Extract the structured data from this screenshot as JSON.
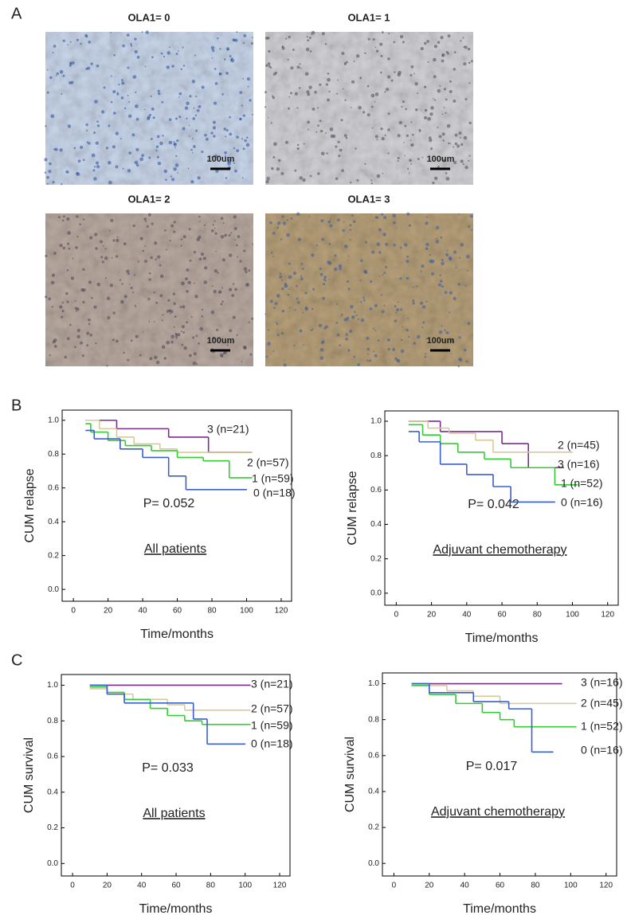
{
  "panels": [
    "A",
    "B",
    "C"
  ],
  "images": [
    {
      "title": "OLA1= 0",
      "scale": "100um"
    },
    {
      "title": "OLA1= 1",
      "scale": "100um"
    },
    {
      "title": "OLA1= 2",
      "scale": "100um"
    },
    {
      "title": "OLA1= 3",
      "scale": "100um"
    }
  ],
  "chart_data": [
    {
      "type": "step",
      "ylabel": "CUM relapse",
      "xlabel": "Time/months",
      "annotation": "P= 0.052",
      "subtitle": "All patients",
      "xlim": [
        -6.5,
        126
      ],
      "ylim": [
        -0.07,
        1.06
      ],
      "xticks": [
        0,
        20,
        40,
        60,
        80,
        100,
        120
      ],
      "yticks": [
        {
          "value": 0,
          "label": "0.0"
        },
        0.2,
        0.4,
        0.6,
        0.8,
        {
          "value": 1,
          "label": "1.0"
        }
      ],
      "series": [
        {
          "name": "3 (n=21)",
          "color": "#7b2d8e",
          "x": [
            7,
            25,
            55,
            78,
            103
          ],
          "values": [
            1,
            0.95,
            0.9,
            0.81,
            0.81
          ]
        },
        {
          "name": "2 (n=57)",
          "color": "#d6c99a",
          "x": [
            7,
            15,
            25,
            35,
            50,
            60,
            103
          ],
          "values": [
            1,
            0.95,
            0.9,
            0.86,
            0.83,
            0.81,
            0.81
          ]
        },
        {
          "name": "1 (n=59)",
          "color": "#33cc33",
          "x": [
            7,
            10,
            20,
            30,
            45,
            60,
            75,
            90,
            103
          ],
          "values": [
            0.98,
            0.93,
            0.88,
            0.85,
            0.82,
            0.78,
            0.76,
            0.66,
            0.66
          ]
        },
        {
          "name": "0 (n=18)",
          "color": "#3a5fcd",
          "x": [
            7,
            12,
            27,
            40,
            55,
            65,
            100
          ],
          "values": [
            0.94,
            0.89,
            0.83,
            0.78,
            0.67,
            0.59,
            0.59
          ]
        }
      ]
    },
    {
      "type": "step",
      "ylabel": "CUM relapse",
      "xlabel": "Time/months",
      "annotation": "P= 0.042",
      "subtitle": "Adjuvant chemotherapy",
      "xlim": [
        -6.5,
        126
      ],
      "ylim": [
        -0.07,
        1.06
      ],
      "xticks": [
        0,
        20,
        40,
        60,
        80,
        100,
        120
      ],
      "yticks": [
        {
          "value": 0,
          "label": "0.0"
        },
        0.2,
        0.4,
        0.6,
        0.8,
        {
          "value": 1,
          "label": "1.0"
        }
      ],
      "series": [
        {
          "name": "3 (n=16)",
          "color": "#7b2d8e",
          "x": [
            7,
            25,
            60,
            75,
            95
          ],
          "values": [
            1,
            0.94,
            0.87,
            0.73,
            0.73
          ]
        },
        {
          "name": "2 (n=45)",
          "color": "#d6c99a",
          "x": [
            7,
            18,
            30,
            45,
            55,
            100
          ],
          "values": [
            1,
            0.96,
            0.93,
            0.89,
            0.82,
            0.82
          ]
        },
        {
          "name": "1 (n=52)",
          "color": "#33cc33",
          "x": [
            7,
            15,
            25,
            35,
            50,
            65,
            90,
            103
          ],
          "values": [
            0.98,
            0.92,
            0.87,
            0.82,
            0.78,
            0.73,
            0.63,
            0.63
          ]
        },
        {
          "name": "0 (n=16)",
          "color": "#3a5fcd",
          "x": [
            7,
            13,
            25,
            40,
            55,
            65,
            90
          ],
          "values": [
            0.94,
            0.88,
            0.75,
            0.69,
            0.62,
            0.53,
            0.53
          ]
        }
      ]
    },
    {
      "type": "step",
      "ylabel": "CUM survival",
      "xlabel": "Time/months",
      "annotation": "P= 0.033",
      "subtitle": "All patients",
      "xlim": [
        -6.5,
        126
      ],
      "ylim": [
        -0.07,
        1.06
      ],
      "xticks": [
        0,
        20,
        40,
        60,
        80,
        100,
        120
      ],
      "yticks": [
        {
          "value": 0,
          "label": "0.0"
        },
        0.2,
        0.4,
        0.6,
        0.8,
        {
          "value": 1,
          "label": "1.0"
        }
      ],
      "series": [
        {
          "name": "3 (n=21)",
          "color": "#7b2d8e",
          "x": [
            10,
            103
          ],
          "values": [
            1,
            1
          ]
        },
        {
          "name": "2 (n=57)",
          "color": "#d6c99a",
          "x": [
            10,
            20,
            35,
            55,
            65,
            103
          ],
          "values": [
            0.98,
            0.95,
            0.92,
            0.89,
            0.86,
            0.86
          ]
        },
        {
          "name": "1 (n=59)",
          "color": "#33cc33",
          "x": [
            10,
            20,
            30,
            45,
            55,
            65,
            75,
            103
          ],
          "values": [
            0.99,
            0.96,
            0.92,
            0.87,
            0.83,
            0.8,
            0.78,
            0.78
          ]
        },
        {
          "name": "0 (n=18)",
          "color": "#3a5fcd",
          "x": [
            10,
            20,
            30,
            60,
            70,
            78,
            100
          ],
          "values": [
            1,
            0.95,
            0.9,
            0.9,
            0.81,
            0.67,
            0.67
          ]
        }
      ]
    },
    {
      "type": "step",
      "ylabel": "CUM survival",
      "xlabel": "Time/months",
      "annotation": "P= 0.017",
      "subtitle": "Adjuvant chemotherapy",
      "xlim": [
        -6.5,
        126
      ],
      "ylim": [
        -0.07,
        1.06
      ],
      "xticks": [
        0,
        20,
        40,
        60,
        80,
        100,
        120
      ],
      "yticks": [
        {
          "value": 0,
          "label": "0.0"
        },
        0.2,
        0.4,
        0.6,
        0.8,
        {
          "value": 1,
          "label": "1.0"
        }
      ],
      "series": [
        {
          "name": "3 (n=16)",
          "color": "#7b2d8e",
          "x": [
            10,
            95
          ],
          "values": [
            1,
            1
          ]
        },
        {
          "name": "2 (n=45)",
          "color": "#d6c99a",
          "x": [
            10,
            30,
            45,
            60,
            103
          ],
          "values": [
            0.99,
            0.96,
            0.93,
            0.89,
            0.89
          ]
        },
        {
          "name": "1 (n=52)",
          "color": "#33cc33",
          "x": [
            10,
            20,
            35,
            50,
            60,
            68,
            103
          ],
          "values": [
            0.99,
            0.94,
            0.89,
            0.84,
            0.8,
            0.76,
            0.76
          ]
        },
        {
          "name": "0 (n=16)",
          "color": "#3a5fcd",
          "x": [
            10,
            20,
            45,
            65,
            78,
            90
          ],
          "values": [
            1,
            0.95,
            0.9,
            0.86,
            0.62,
            0.62
          ]
        }
      ]
    }
  ]
}
